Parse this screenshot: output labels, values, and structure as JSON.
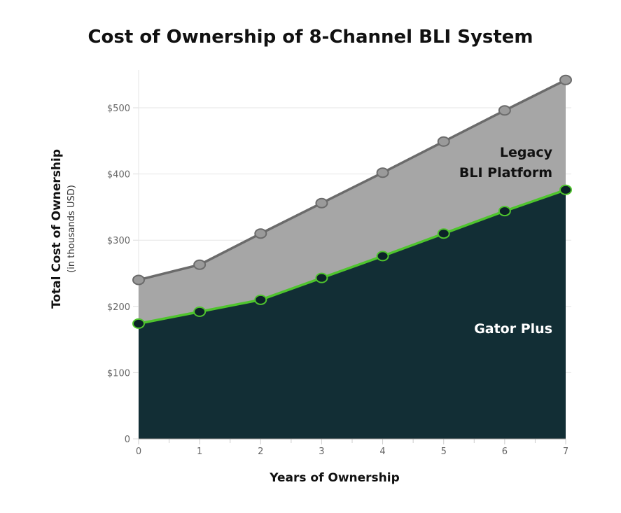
{
  "chart_data": {
    "type": "area",
    "title": "Cost of Ownership of 8-Channel BLI System",
    "xlabel": "Years of Ownership",
    "ylabel": "Total Cost of Ownership",
    "ylabel_sub": "(in thousands USD)",
    "x": [
      0,
      1,
      2,
      3,
      4,
      5,
      6,
      7
    ],
    "xlim": [
      0,
      7
    ],
    "ylim": [
      0,
      560
    ],
    "yticks": [
      0,
      100,
      200,
      300,
      400,
      500
    ],
    "ytick_labels": [
      "0",
      "$100",
      "$200",
      "$300",
      "$400",
      "$500"
    ],
    "grid": true,
    "series": [
      {
        "name": "Legacy BLI Platform",
        "name_lines": [
          "Legacy",
          "BLI Platform"
        ],
        "values": [
          240,
          263,
          310,
          356,
          402,
          449,
          496,
          542
        ],
        "fill": "#a6a6a6",
        "line": "#6b6b6b",
        "marker": "#9a9a9a",
        "label_color": "#111111"
      },
      {
        "name": "Gator Plus",
        "values": [
          174,
          192,
          210,
          243,
          276,
          310,
          344,
          376
        ],
        "fill": "#122e35",
        "line": "#4fc42e",
        "marker": "#0c2228",
        "label_color": "#ffffff"
      }
    ]
  }
}
